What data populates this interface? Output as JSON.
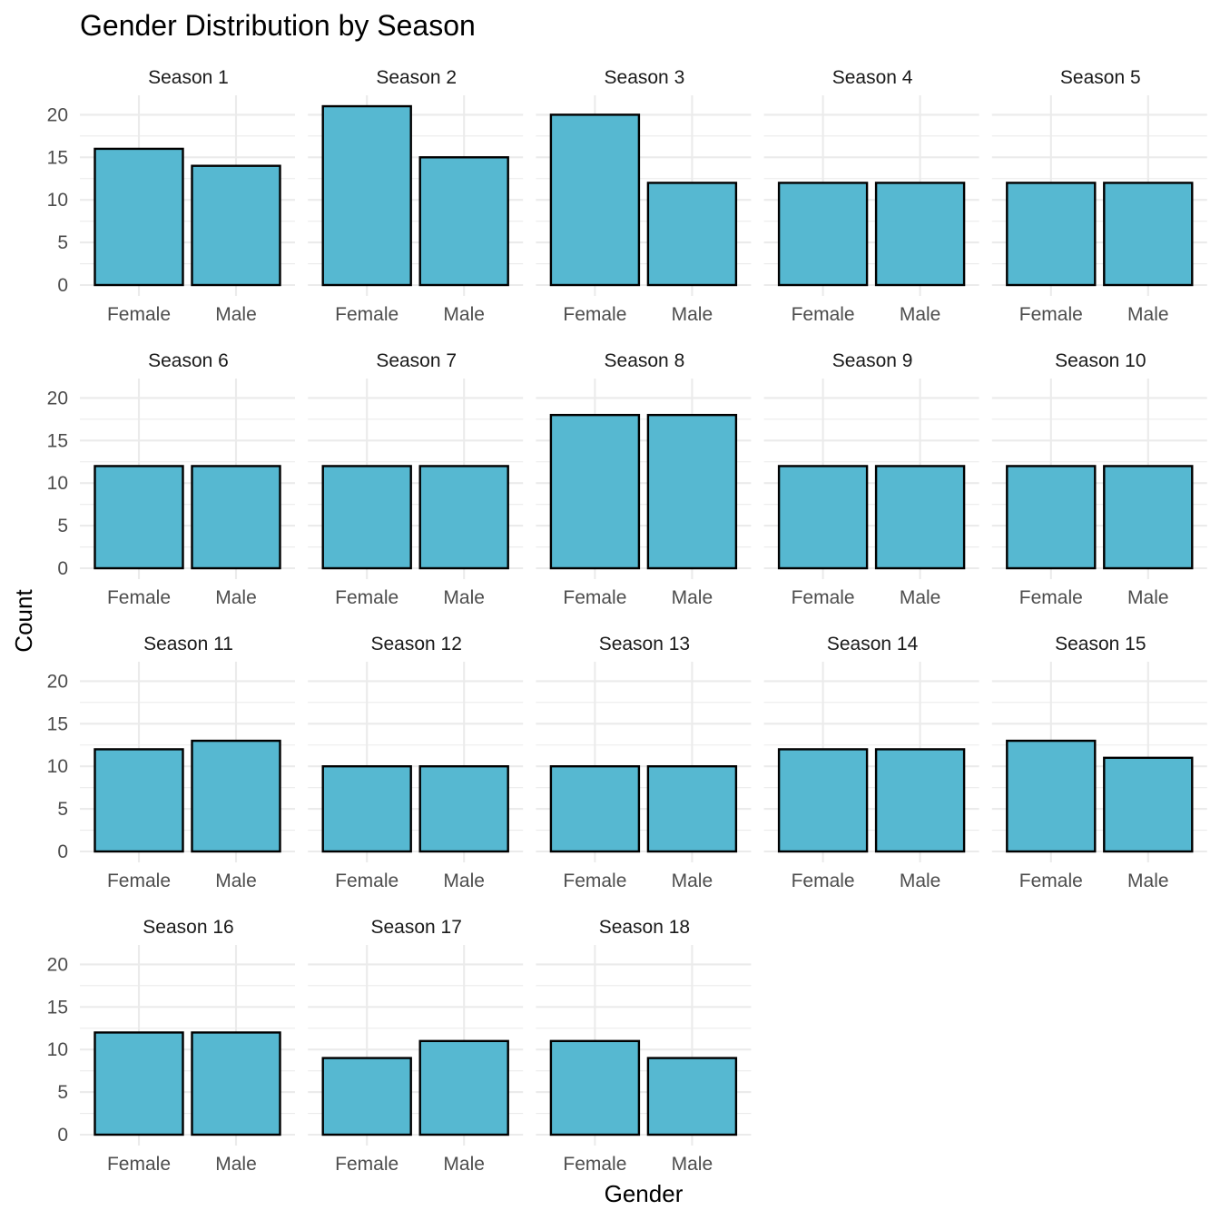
{
  "chart_data": {
    "type": "bar",
    "title": "Gender Distribution by Season",
    "xlabel": "Gender",
    "ylabel": "Count",
    "ylim": [
      0,
      22
    ],
    "yticks": [
      0,
      5,
      10,
      15,
      20
    ],
    "grid": true,
    "bar_color": "#56B8D1",
    "bar_outline_color": "#000000",
    "categories": [
      "Female",
      "Male"
    ],
    "panels": [
      {
        "label": "Season 1",
        "values": [
          16,
          14
        ]
      },
      {
        "label": "Season 2",
        "values": [
          21,
          15
        ]
      },
      {
        "label": "Season 3",
        "values": [
          20,
          12
        ]
      },
      {
        "label": "Season 4",
        "values": [
          12,
          12
        ]
      },
      {
        "label": "Season 5",
        "values": [
          12,
          12
        ]
      },
      {
        "label": "Season 6",
        "values": [
          12,
          12
        ]
      },
      {
        "label": "Season 7",
        "values": [
          12,
          12
        ]
      },
      {
        "label": "Season 8",
        "values": [
          18,
          18
        ]
      },
      {
        "label": "Season 9",
        "values": [
          12,
          12
        ]
      },
      {
        "label": "Season 10",
        "values": [
          12,
          12
        ]
      },
      {
        "label": "Season 11",
        "values": [
          12,
          13
        ]
      },
      {
        "label": "Season 12",
        "values": [
          10,
          10
        ]
      },
      {
        "label": "Season 13",
        "values": [
          10,
          10
        ]
      },
      {
        "label": "Season 14",
        "values": [
          12,
          12
        ]
      },
      {
        "label": "Season 15",
        "values": [
          13,
          11
        ]
      },
      {
        "label": "Season 16",
        "values": [
          12,
          12
        ]
      },
      {
        "label": "Season 17",
        "values": [
          9,
          11
        ]
      },
      {
        "label": "Season 18",
        "values": [
          11,
          9
        ]
      }
    ]
  }
}
